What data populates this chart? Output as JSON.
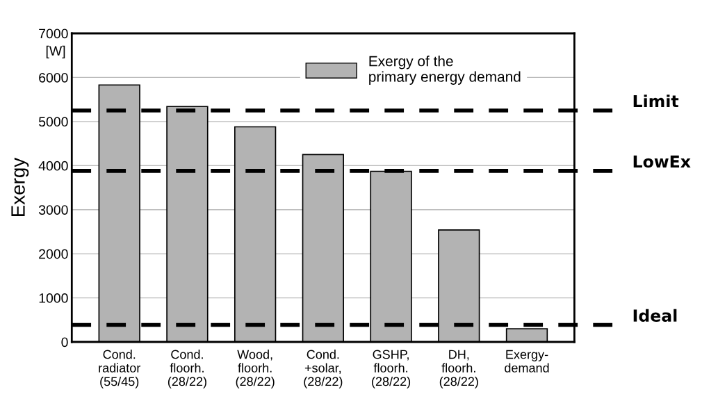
{
  "chart_data": {
    "type": "bar",
    "ylabel": "Exergy",
    "annotations": [
      "[W]"
    ],
    "categories": [
      "Cond.\nradiator\n(55/45)",
      "Cond.\nfloorh.\n(28/22)",
      "Wood,\nfloorh.\n(28/22)",
      "Cond.\n+solar,\n(28/22)",
      "GSHP,\nfloorh.\n(28/22)",
      "DH,\nfloorh.\n(28/22)",
      "Exergy-\ndemand"
    ],
    "series": [
      {
        "name": "Exergy of the\nprimary energy demand",
        "color": "#b3b3b3",
        "values": [
          5830,
          5340,
          4880,
          4250,
          3870,
          2540,
          300
        ]
      }
    ],
    "ylim": [
      0,
      7000
    ],
    "yticks": [
      0,
      1000,
      2000,
      3000,
      4000,
      5000,
      6000,
      7000
    ],
    "grid": "y",
    "legend": "top right",
    "ref_lines": [
      {
        "axis": "y",
        "value": 5250,
        "label": "Limit",
        "color": "#000000",
        "line_style": "dashed"
      },
      {
        "axis": "y",
        "value": 3880,
        "label": "LowEx",
        "color": "#000000",
        "line_style": "dashed"
      },
      {
        "axis": "y",
        "value": 385,
        "label": "Ideal",
        "color": "#000000",
        "line_style": "dashed"
      }
    ]
  }
}
